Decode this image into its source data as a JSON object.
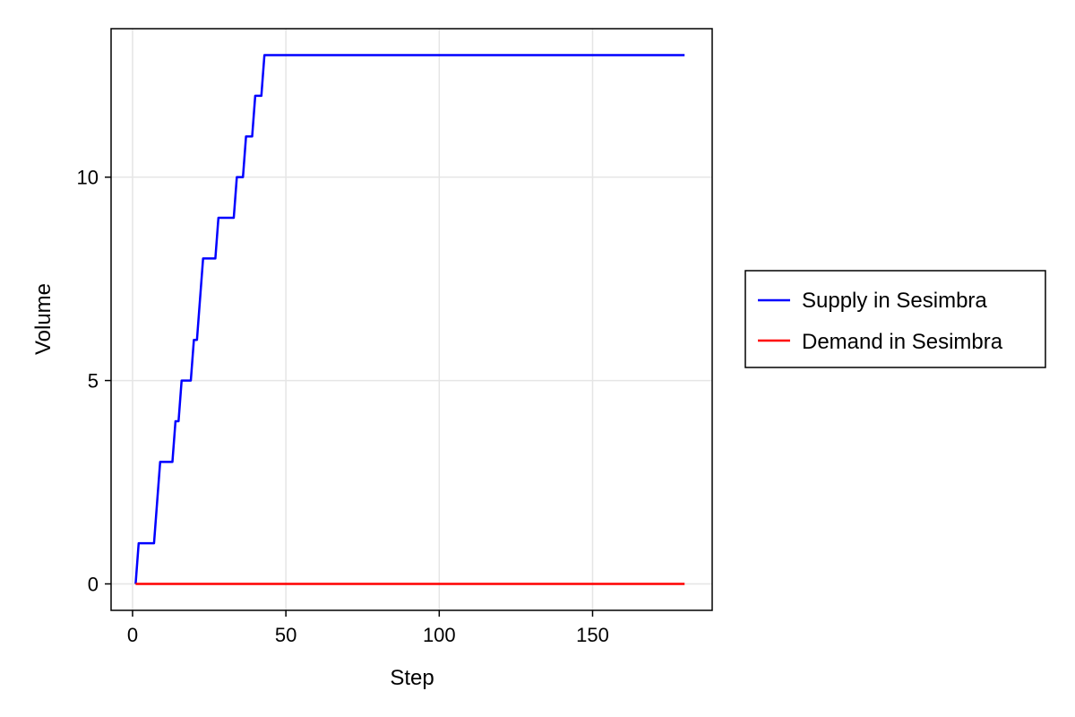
{
  "chart_data": {
    "type": "line",
    "title": "",
    "xlabel": "Step",
    "ylabel": "Volume",
    "xlim": [
      -7,
      189
    ],
    "ylim": [
      -0.65,
      13.65
    ],
    "xticks": [
      0,
      50,
      100,
      150
    ],
    "yticks": [
      0,
      5,
      10
    ],
    "grid": true,
    "legend_position": "right",
    "series": [
      {
        "name": "Supply in Sesimbra",
        "color": "#0000ff",
        "step_points": [
          [
            1,
            0
          ],
          [
            2,
            1
          ],
          [
            7,
            1
          ],
          [
            9,
            3
          ],
          [
            13,
            3
          ],
          [
            14,
            4
          ],
          [
            15,
            4
          ],
          [
            16,
            5
          ],
          [
            19,
            5
          ],
          [
            20,
            6
          ],
          [
            21,
            6
          ],
          [
            23,
            8
          ],
          [
            27,
            8
          ],
          [
            28,
            9
          ],
          [
            33,
            9
          ],
          [
            34,
            10
          ],
          [
            36,
            10
          ],
          [
            37,
            11
          ],
          [
            39,
            11
          ],
          [
            40,
            12
          ],
          [
            42,
            12
          ],
          [
            43,
            13
          ],
          [
            180,
            13
          ]
        ]
      },
      {
        "name": "Demand in Sesimbra",
        "color": "#ff0000",
        "step_points": [
          [
            1,
            0
          ],
          [
            180,
            0
          ]
        ]
      }
    ]
  }
}
